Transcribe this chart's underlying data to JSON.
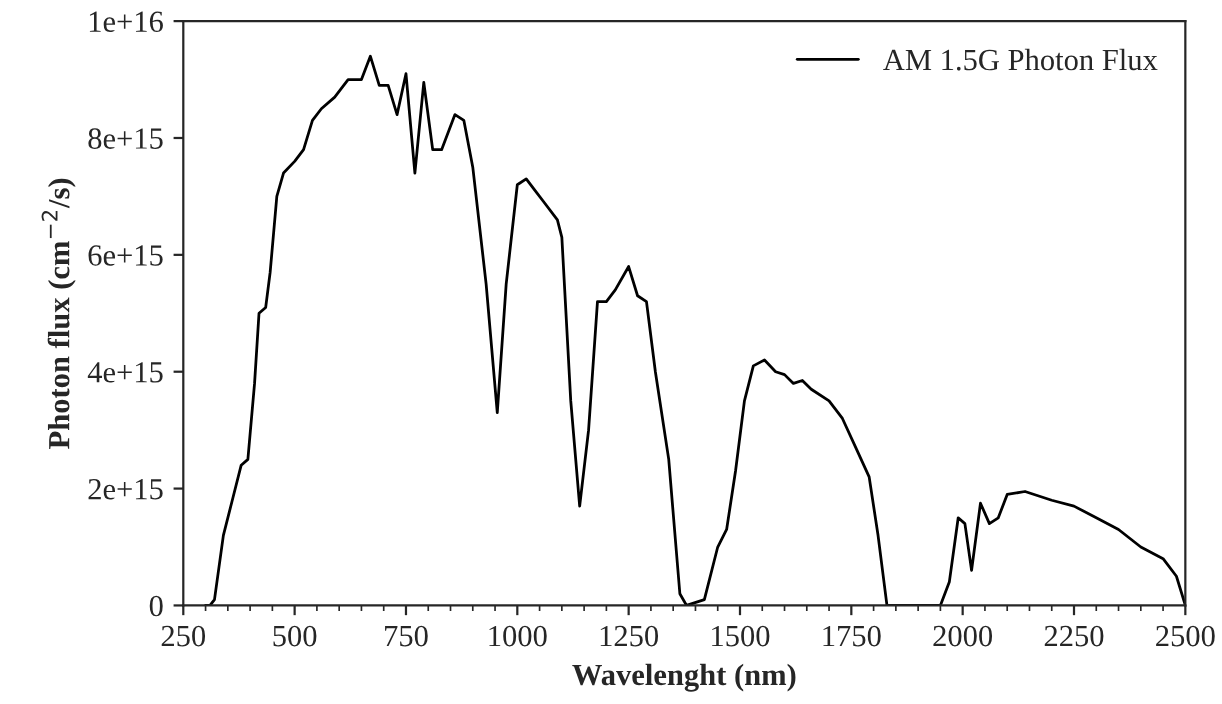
{
  "chart_data": {
    "type": "line",
    "xlabel": "Wavelenght (nm)",
    "ylabel": "Photon flux (cm$^{−2}$/s)",
    "xlim": [
      250,
      2500
    ],
    "xticks": [
      250,
      500,
      750,
      1000,
      1250,
      1500,
      1750,
      2000,
      2250,
      2500
    ],
    "ylim": [
      0,
      1e+16
    ],
    "yticks": [
      0,
      {
        "value": 2000000000000000.0,
        "label": "2e+15"
      },
      {
        "value": 4000000000000000.0,
        "label": "4e+15"
      },
      {
        "value": 6000000000000000.0,
        "label": "6e+15"
      },
      {
        "value": 8000000000000000.0,
        "label": "8e+15"
      },
      {
        "value": 1e+16,
        "label": "1e+16"
      }
    ],
    "grid": false,
    "legend": "top right",
    "marker": "none",
    "line_style": "solid",
    "series": [
      {
        "name": "AM 1.5G Photon Flux",
        "color": "#000000",
        "x": [
          300,
          310,
          320,
          340,
          360,
          380,
          395,
          410,
          420,
          435,
          445,
          460,
          475,
          500,
          520,
          540,
          560,
          590,
          620,
          650,
          670,
          690,
          710,
          730,
          750,
          770,
          790,
          810,
          830,
          860,
          880,
          900,
          930,
          955,
          975,
          1000,
          1020,
          1040,
          1060,
          1090,
          1100,
          1120,
          1140,
          1160,
          1180,
          1200,
          1220,
          1250,
          1270,
          1290,
          1310,
          1340,
          1365,
          1380,
          1420,
          1450,
          1470,
          1490,
          1510,
          1530,
          1555,
          1580,
          1600,
          1620,
          1640,
          1660,
          1700,
          1730,
          1760,
          1790,
          1810,
          1830,
          1950,
          1970,
          1990,
          2005,
          2020,
          2040,
          2060,
          2080,
          2100,
          2140,
          2200,
          2250,
          2300,
          2350,
          2400,
          2450,
          2480,
          2500
        ],
        "values": [
          0,
          0,
          100000000000000.0,
          1200000000000000.0,
          1800000000000000.0,
          2400000000000000.0,
          2500000000000000.0,
          3800000000000000.0,
          5000000000000000.0,
          5100000000000000.0,
          5700000000000000.0,
          7000000000000000.0,
          7400000000000000.0,
          7600000000000000.0,
          7800000000000000.0,
          8300000000000000.0,
          8500000000000000.0,
          8700000000000000.0,
          9000000000000000.0,
          9000000000000000.0,
          9400000000000000.0,
          8900000000000000.0,
          8900000000000000.0,
          8400000000000000.0,
          9100000000000000.0,
          7400000000000000.0,
          8950000000000000.0,
          7800000000000000.0,
          7800000000000000.0,
          8400000000000000.0,
          8300000000000000.0,
          7500000000000000.0,
          5500000000000000.0,
          3300000000000000.0,
          5500000000000000.0,
          7200000000000000.0,
          7300000000000000.0,
          7100000000000000.0,
          6900000000000000.0,
          6600000000000000.0,
          6300000000000000.0,
          3500000000000000.0,
          1700000000000000.0,
          3000000000000000.0,
          5200000000000000.0,
          5200000000000000.0,
          5400000000000000.0,
          5800000000000000.0,
          5300000000000000.0,
          5200000000000000.0,
          4000000000000000.0,
          2500000000000000.0,
          200000000000000.0,
          0,
          100000000000000.0,
          1000000000000000.0,
          1300000000000000.0,
          2300000000000000.0,
          3500000000000000.0,
          4100000000000000.0,
          4200000000000000.0,
          4000000000000000.0,
          3950000000000000.0,
          3800000000000000.0,
          3850000000000000.0,
          3700000000000000.0,
          3500000000000000.0,
          3200000000000000.0,
          2700000000000000.0,
          2200000000000000.0,
          1200000000000000.0,
          0,
          0,
          400000000000000.0,
          1500000000000000.0,
          1400000000000000.0,
          600000000000000.0,
          1750000000000000.0,
          1400000000000000.0,
          1500000000000000.0,
          1900000000000000.0,
          1950000000000000.0,
          1800000000000000.0,
          1700000000000000.0,
          1500000000000000.0,
          1300000000000000.0,
          1000000000000000.0,
          800000000000000.0,
          500000000000000.0,
          0
        ]
      }
    ]
  }
}
